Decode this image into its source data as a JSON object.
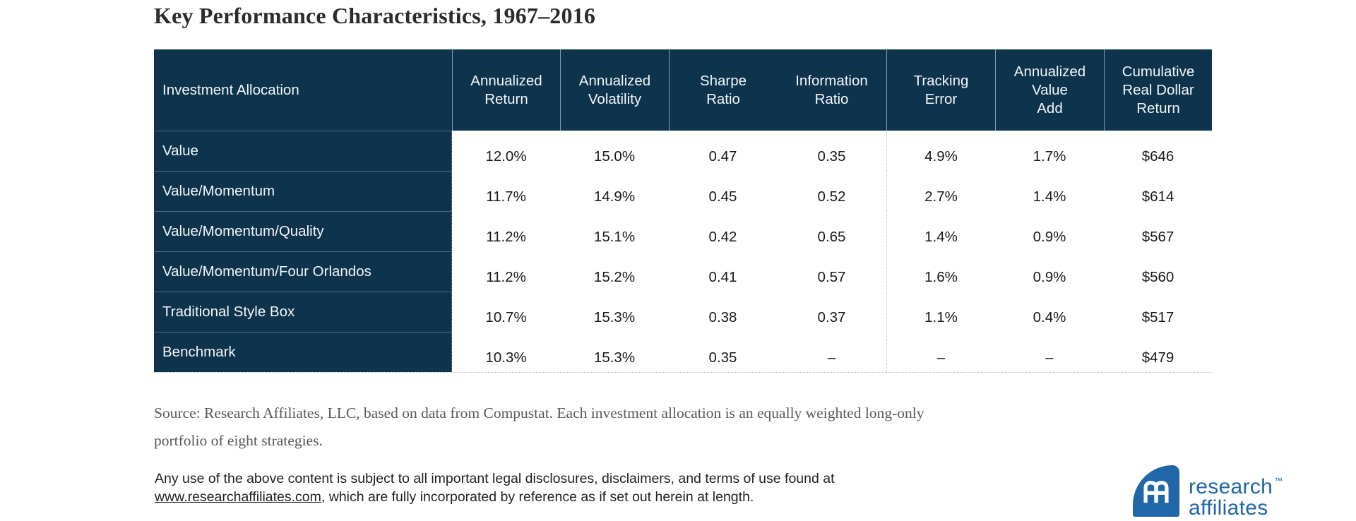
{
  "title": "Key Performance Characteristics, 1967–2016",
  "colors": {
    "navy": "#0d334d",
    "logo_blue": "#1f67a8",
    "separator_light": "#c9c9c9"
  },
  "table": {
    "columns": [
      "Investment Allocation",
      "Annualized\nReturn",
      "Annualized\nVolatility",
      "Sharpe\nRatio",
      "Information\nRatio",
      "Tracking\nError",
      "Annualized\nValue\nAdd",
      "Cumulative\nReal Dollar\nReturn"
    ],
    "rows": [
      {
        "label": "Value",
        "values": [
          "12.0%",
          "15.0%",
          "0.47",
          "0.35",
          "4.9%",
          "1.7%",
          "$646"
        ]
      },
      {
        "label": "Value/Momentum",
        "values": [
          "11.7%",
          "14.9%",
          "0.45",
          "0.52",
          "2.7%",
          "1.4%",
          "$614"
        ]
      },
      {
        "label": "Value/Momentum/Quality",
        "values": [
          "11.2%",
          "15.1%",
          "0.42",
          "0.65",
          "1.4%",
          "0.9%",
          "$567"
        ]
      },
      {
        "label": "Value/Momentum/Four Orlandos",
        "values": [
          "11.2%",
          "15.2%",
          "0.41",
          "0.57",
          "1.6%",
          "0.9%",
          "$560"
        ]
      },
      {
        "label": "Traditional Style Box",
        "values": [
          "10.7%",
          "15.3%",
          "0.38",
          "0.37",
          "1.1%",
          "0.4%",
          "$517"
        ]
      },
      {
        "label": "Benchmark",
        "values": [
          "10.3%",
          "15.3%",
          "0.35",
          "–",
          "–",
          "–",
          "$479"
        ]
      }
    ]
  },
  "chart_data": {
    "type": "table",
    "title": "Key Performance Characteristics, 1967–2016",
    "columns": [
      "Investment Allocation",
      "Annualized Return",
      "Annualized Volatility",
      "Sharpe Ratio",
      "Information Ratio",
      "Tracking Error",
      "Annualized Value Add",
      "Cumulative Real Dollar Return"
    ],
    "rows": [
      [
        "Value",
        "12.0%",
        "15.0%",
        "0.47",
        "0.35",
        "4.9%",
        "1.7%",
        "$646"
      ],
      [
        "Value/Momentum",
        "11.7%",
        "14.9%",
        "0.45",
        "0.52",
        "2.7%",
        "1.4%",
        "$614"
      ],
      [
        "Value/Momentum/Quality",
        "11.2%",
        "15.1%",
        "0.42",
        "0.65",
        "1.4%",
        "0.9%",
        "$567"
      ],
      [
        "Value/Momentum/Four Orlandos",
        "11.2%",
        "15.2%",
        "0.41",
        "0.57",
        "1.6%",
        "0.9%",
        "$560"
      ],
      [
        "Traditional Style Box",
        "10.7%",
        "15.3%",
        "0.38",
        "0.37",
        "1.1%",
        "0.4%",
        "$517"
      ],
      [
        "Benchmark",
        "10.3%",
        "15.3%",
        "0.35",
        "–",
        "–",
        "–",
        "$479"
      ]
    ],
    "source": "Source: Research Affiliates, LLC, based on data from Compustat. Each investment allocation is an equally weighted long-only portfolio of eight strategies."
  },
  "source_note": {
    "line1": "Source: Research Affiliates, LLC, based on data from Compustat. Each investment allocation is an equally weighted long-only",
    "line2": "portfolio of eight strategies."
  },
  "disclaimer": {
    "line1": "Any use of the above content is subject to all important legal disclosures, disclaimers, and terms of use found at",
    "link": "www.researchaffiliates.com",
    "line2_rest": ", which are fully incorporated by reference as if set out herein at length."
  },
  "logo": {
    "name1": "research",
    "name2": "affiliates",
    "tm": "™"
  }
}
